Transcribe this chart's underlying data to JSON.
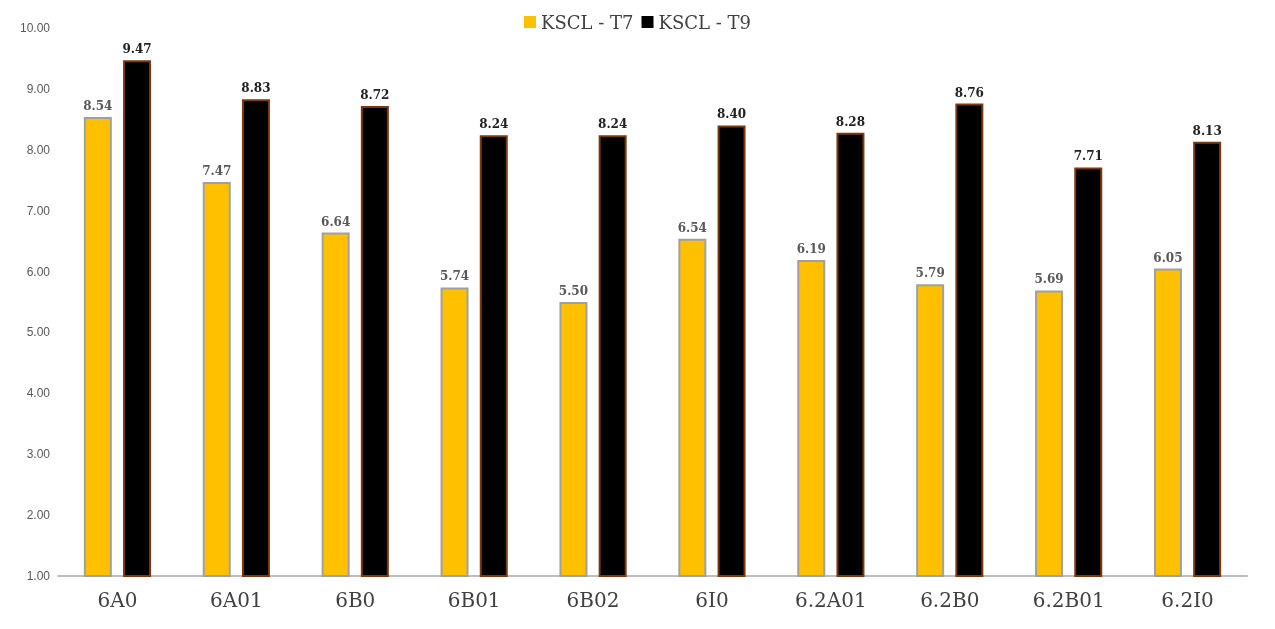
{
  "chart_data": {
    "type": "bar",
    "categories": [
      "6A0",
      "6A01",
      "6B0",
      "6B01",
      "6B02",
      "6I0",
      "6.2A01",
      "6.2B0",
      "6.2B01",
      "6.2I0"
    ],
    "series": [
      {
        "name": "KSCL - T7",
        "color": "#ffc000",
        "values": [
          8.54,
          7.47,
          6.64,
          5.74,
          5.5,
          6.54,
          6.19,
          5.79,
          5.69,
          6.05
        ],
        "value_labels": [
          "8.54",
          "7.47",
          "6.64",
          "5.74",
          "5.50",
          "6.54",
          "6.19",
          "5.79",
          "5.69",
          "6.05"
        ]
      },
      {
        "name": "KSCL - T9",
        "color": "#000000",
        "values": [
          9.47,
          8.83,
          8.72,
          8.24,
          8.24,
          8.4,
          8.28,
          8.76,
          7.71,
          8.13
        ],
        "value_labels": [
          "9.47",
          "8.83",
          "8.72",
          "8.24",
          "8.24",
          "8.40",
          "8.28",
          "8.76",
          "7.71",
          "8.13"
        ]
      }
    ],
    "ylim": [
      1,
      10
    ],
    "yticks": [
      {
        "value": 1,
        "label": "1.00"
      },
      {
        "value": 2,
        "label": "2.00"
      },
      {
        "value": 3,
        "label": "3.00"
      },
      {
        "value": 4,
        "label": "4.00"
      },
      {
        "value": 5,
        "label": "5.00"
      },
      {
        "value": 6,
        "label": "6.00"
      },
      {
        "value": 7,
        "label": "7.00"
      },
      {
        "value": 8,
        "label": "8.00"
      },
      {
        "value": 9,
        "label": "9.00"
      },
      {
        "value": 10,
        "label": "10.00"
      }
    ],
    "grid": false,
    "legend": "top"
  }
}
